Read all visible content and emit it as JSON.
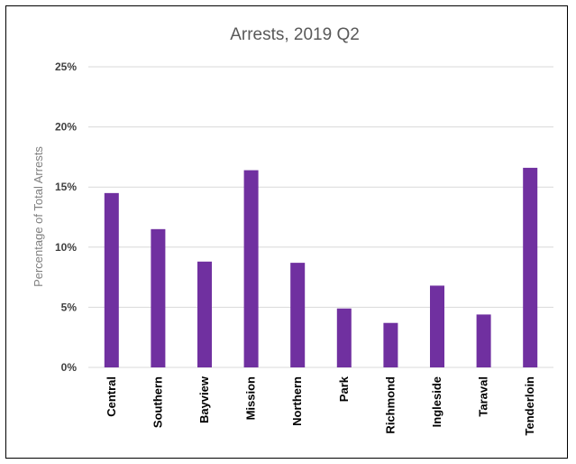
{
  "chart_data": {
    "type": "bar",
    "title": "Arrests, 2019 Q2",
    "xlabel": "",
    "ylabel": "Percentage of Total Arrests",
    "categories": [
      "Central",
      "Southern",
      "Bayview",
      "Mission",
      "Northern",
      "Park",
      "Richmond",
      "Ingleside",
      "Taraval",
      "Tenderloin"
    ],
    "values": [
      14.5,
      11.5,
      8.8,
      16.4,
      8.7,
      4.9,
      3.7,
      6.8,
      4.4,
      16.6
    ],
    "value_format": "percent",
    "ylim": [
      0,
      25
    ],
    "yticks": [
      0,
      5,
      10,
      15,
      20,
      25
    ],
    "ytick_labels": [
      "0%",
      "5%",
      "10%",
      "15%",
      "20%",
      "25%"
    ],
    "grid": true,
    "legend": "none",
    "colors": {
      "bar": "#7030a0",
      "grid": "#d9d9d9",
      "frame": "#000000"
    }
  }
}
